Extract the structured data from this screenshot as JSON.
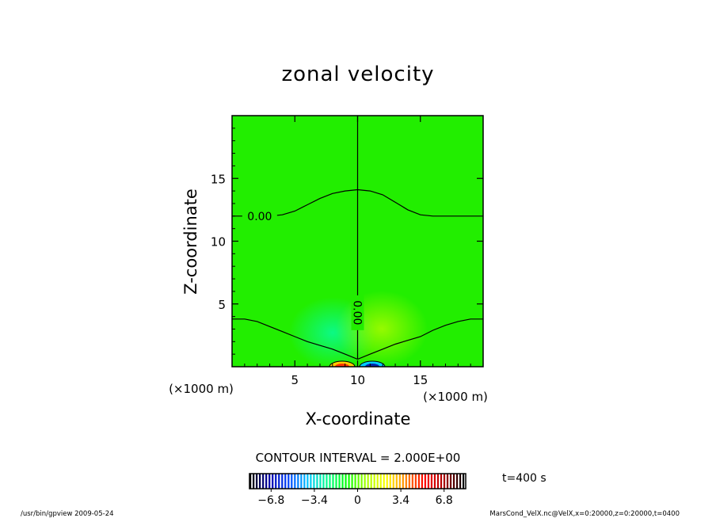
{
  "chart_data": {
    "type": "heatmap",
    "title": "zonal velocity",
    "xlabel": "X-coordinate",
    "ylabel": "Z-coordinate",
    "x_unit": "(×1000 m)",
    "y_unit": "(×1000 m)",
    "xlim": [
      0,
      20
    ],
    "ylim": [
      0,
      20
    ],
    "x_ticks": [
      5,
      10,
      15
    ],
    "y_ticks": [
      5,
      10,
      15
    ],
    "x_tick_labels": [
      "5",
      "10",
      "15"
    ],
    "y_tick_labels": [
      "5",
      "10",
      "15"
    ],
    "contour_interval_text": "CONTOUR INTERVAL = 2.000E+00",
    "contours": [
      {
        "level_label": "0.00",
        "x": [
          0,
          1,
          2,
          3,
          4,
          5,
          6,
          7,
          8,
          9,
          10,
          11,
          12,
          13,
          14,
          15,
          16,
          17,
          18,
          19,
          20
        ],
        "y": [
          12,
          12,
          12,
          12,
          12.1,
          12.4,
          12.9,
          13.4,
          13.8,
          14.0,
          14.1,
          14.0,
          13.7,
          13.1,
          12.5,
          12.1,
          12.0,
          12.0,
          12.0,
          12.0,
          12.0
        ]
      },
      {
        "level_label": "0.00",
        "x": [
          10,
          10
        ],
        "y": [
          0.6,
          20
        ]
      },
      {
        "level_label": "",
        "x": [
          0,
          1,
          2,
          3,
          4,
          5,
          6,
          7,
          8,
          9,
          10,
          11,
          12,
          13,
          14,
          15,
          16,
          17,
          18,
          19,
          20
        ],
        "y": [
          3.8,
          3.8,
          3.6,
          3.2,
          2.8,
          2.4,
          2.0,
          1.7,
          1.4,
          1.0,
          0.6,
          1.0,
          1.4,
          1.8,
          2.1,
          2.4,
          2.9,
          3.3,
          3.6,
          3.8,
          3.8
        ]
      }
    ],
    "colorbar": {
      "tick_labels": [
        "−6.8",
        "−3.4",
        "0",
        "3.4",
        "6.8"
      ],
      "tick_values": [
        -6.8,
        -3.4,
        0,
        3.4,
        6.8
      ],
      "range": [
        -8.5,
        8.5
      ],
      "colors": [
        "#000000",
        "#0000aa",
        "#0044ff",
        "#00c8ff",
        "#00ff88",
        "#00ff00",
        "#aaff00",
        "#ffff00",
        "#ff8800",
        "#ff0000",
        "#aa0000",
        "#000000"
      ]
    },
    "field_colors": {
      "background": "#22ee00",
      "negative": "#00ffcc",
      "positive": "#b4ff00"
    },
    "time_text": "t=400  s",
    "footer_left": "/usr/bin/gpview   2009-05-24",
    "footer_right": "MarsCond_VelX.nc@VelX,x=0:20000,z=0:20000,t=0400"
  }
}
